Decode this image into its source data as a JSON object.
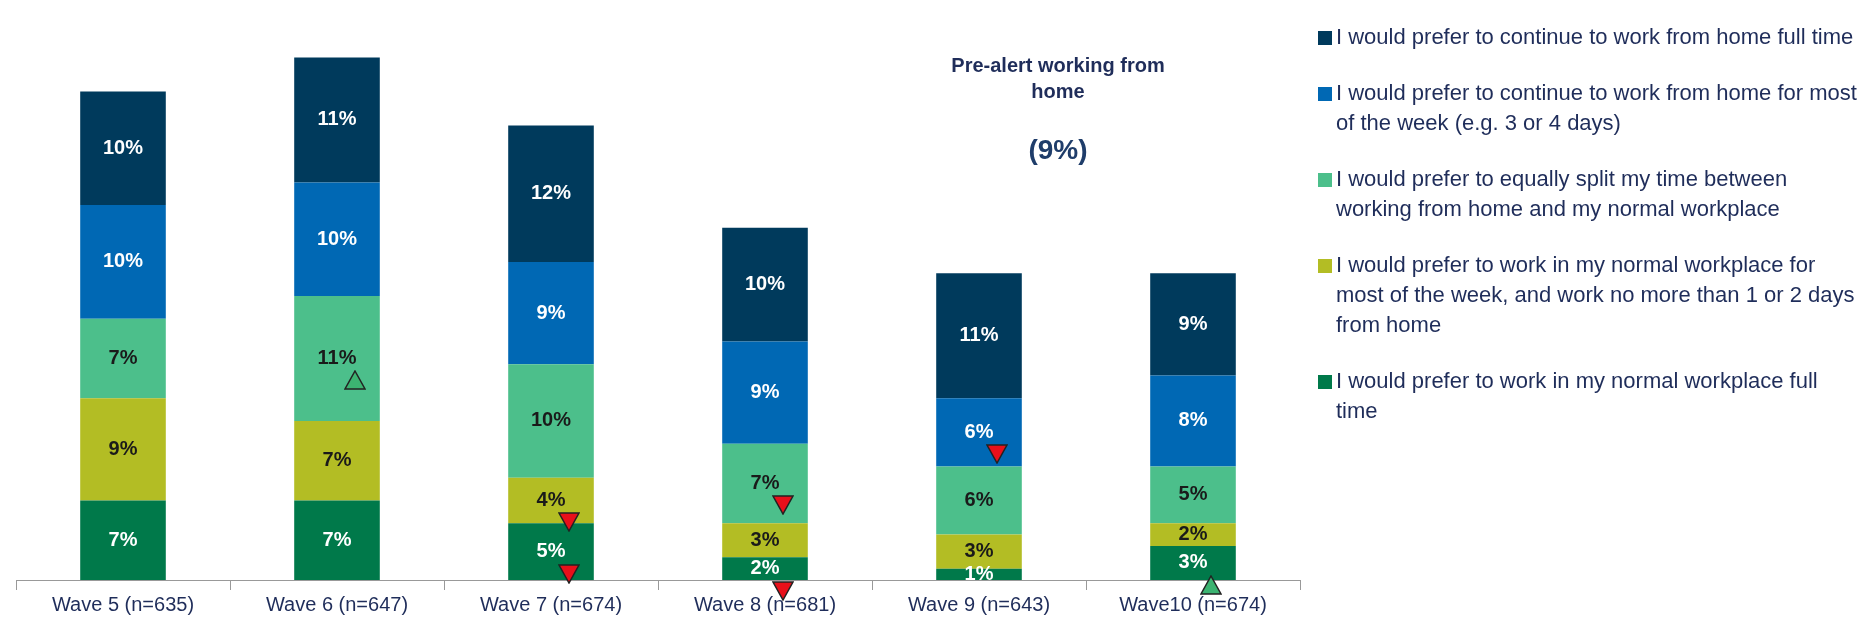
{
  "chart_data": {
    "type": "bar",
    "stacked": true,
    "categories": [
      "Wave 5 (n=635)",
      "Wave 6 (n=647)",
      "Wave 7 (n=674)",
      "Wave 8 (n=681)",
      "Wave 9 (n=643)",
      "Wave10 (n=674)"
    ],
    "series": [
      {
        "name": "I would prefer to work in my normal workplace full time",
        "color": "#00794a",
        "values": [
          7,
          7,
          5,
          2,
          1,
          3
        ],
        "value_labels": [
          "7%",
          "7%",
          "5%",
          "2%",
          "1%",
          "3%"
        ]
      },
      {
        "name": "I would prefer to work in my normal workplace for most of the week, and work no more than 1 or 2 days from home",
        "color": "#b3bd24",
        "values": [
          9,
          7,
          4,
          3,
          3,
          2
        ],
        "value_labels": [
          "9%",
          "7%",
          "4%",
          "3%",
          "3%",
          "2%"
        ]
      },
      {
        "name": "I would prefer to equally split my time between working from home and my normal workplace",
        "color": "#4cbf8b",
        "values": [
          7,
          11,
          10,
          7,
          6,
          5
        ],
        "value_labels": [
          "7%",
          "11%",
          "10%",
          "7%",
          "6%",
          "5%"
        ]
      },
      {
        "name": "I would prefer to continue to work from home for most of the week (e.g. 3 or 4 days)",
        "color": "#0068b4",
        "values": [
          10,
          10,
          9,
          9,
          6,
          8
        ],
        "value_labels": [
          "10%",
          "10%",
          "9%",
          "9%",
          "6%",
          "8%"
        ]
      },
      {
        "name": "I would prefer to continue to work from home full time",
        "color": "#003a5c",
        "values": [
          10,
          11,
          12,
          10,
          11,
          9
        ],
        "value_labels": [
          "10%",
          "11%",
          "12%",
          "10%",
          "11%",
          "9%"
        ]
      }
    ],
    "tick_labels": "x",
    "legend": "right",
    "annotations": [
      "Pre-alert working from home",
      "(9%)"
    ]
  }
}
